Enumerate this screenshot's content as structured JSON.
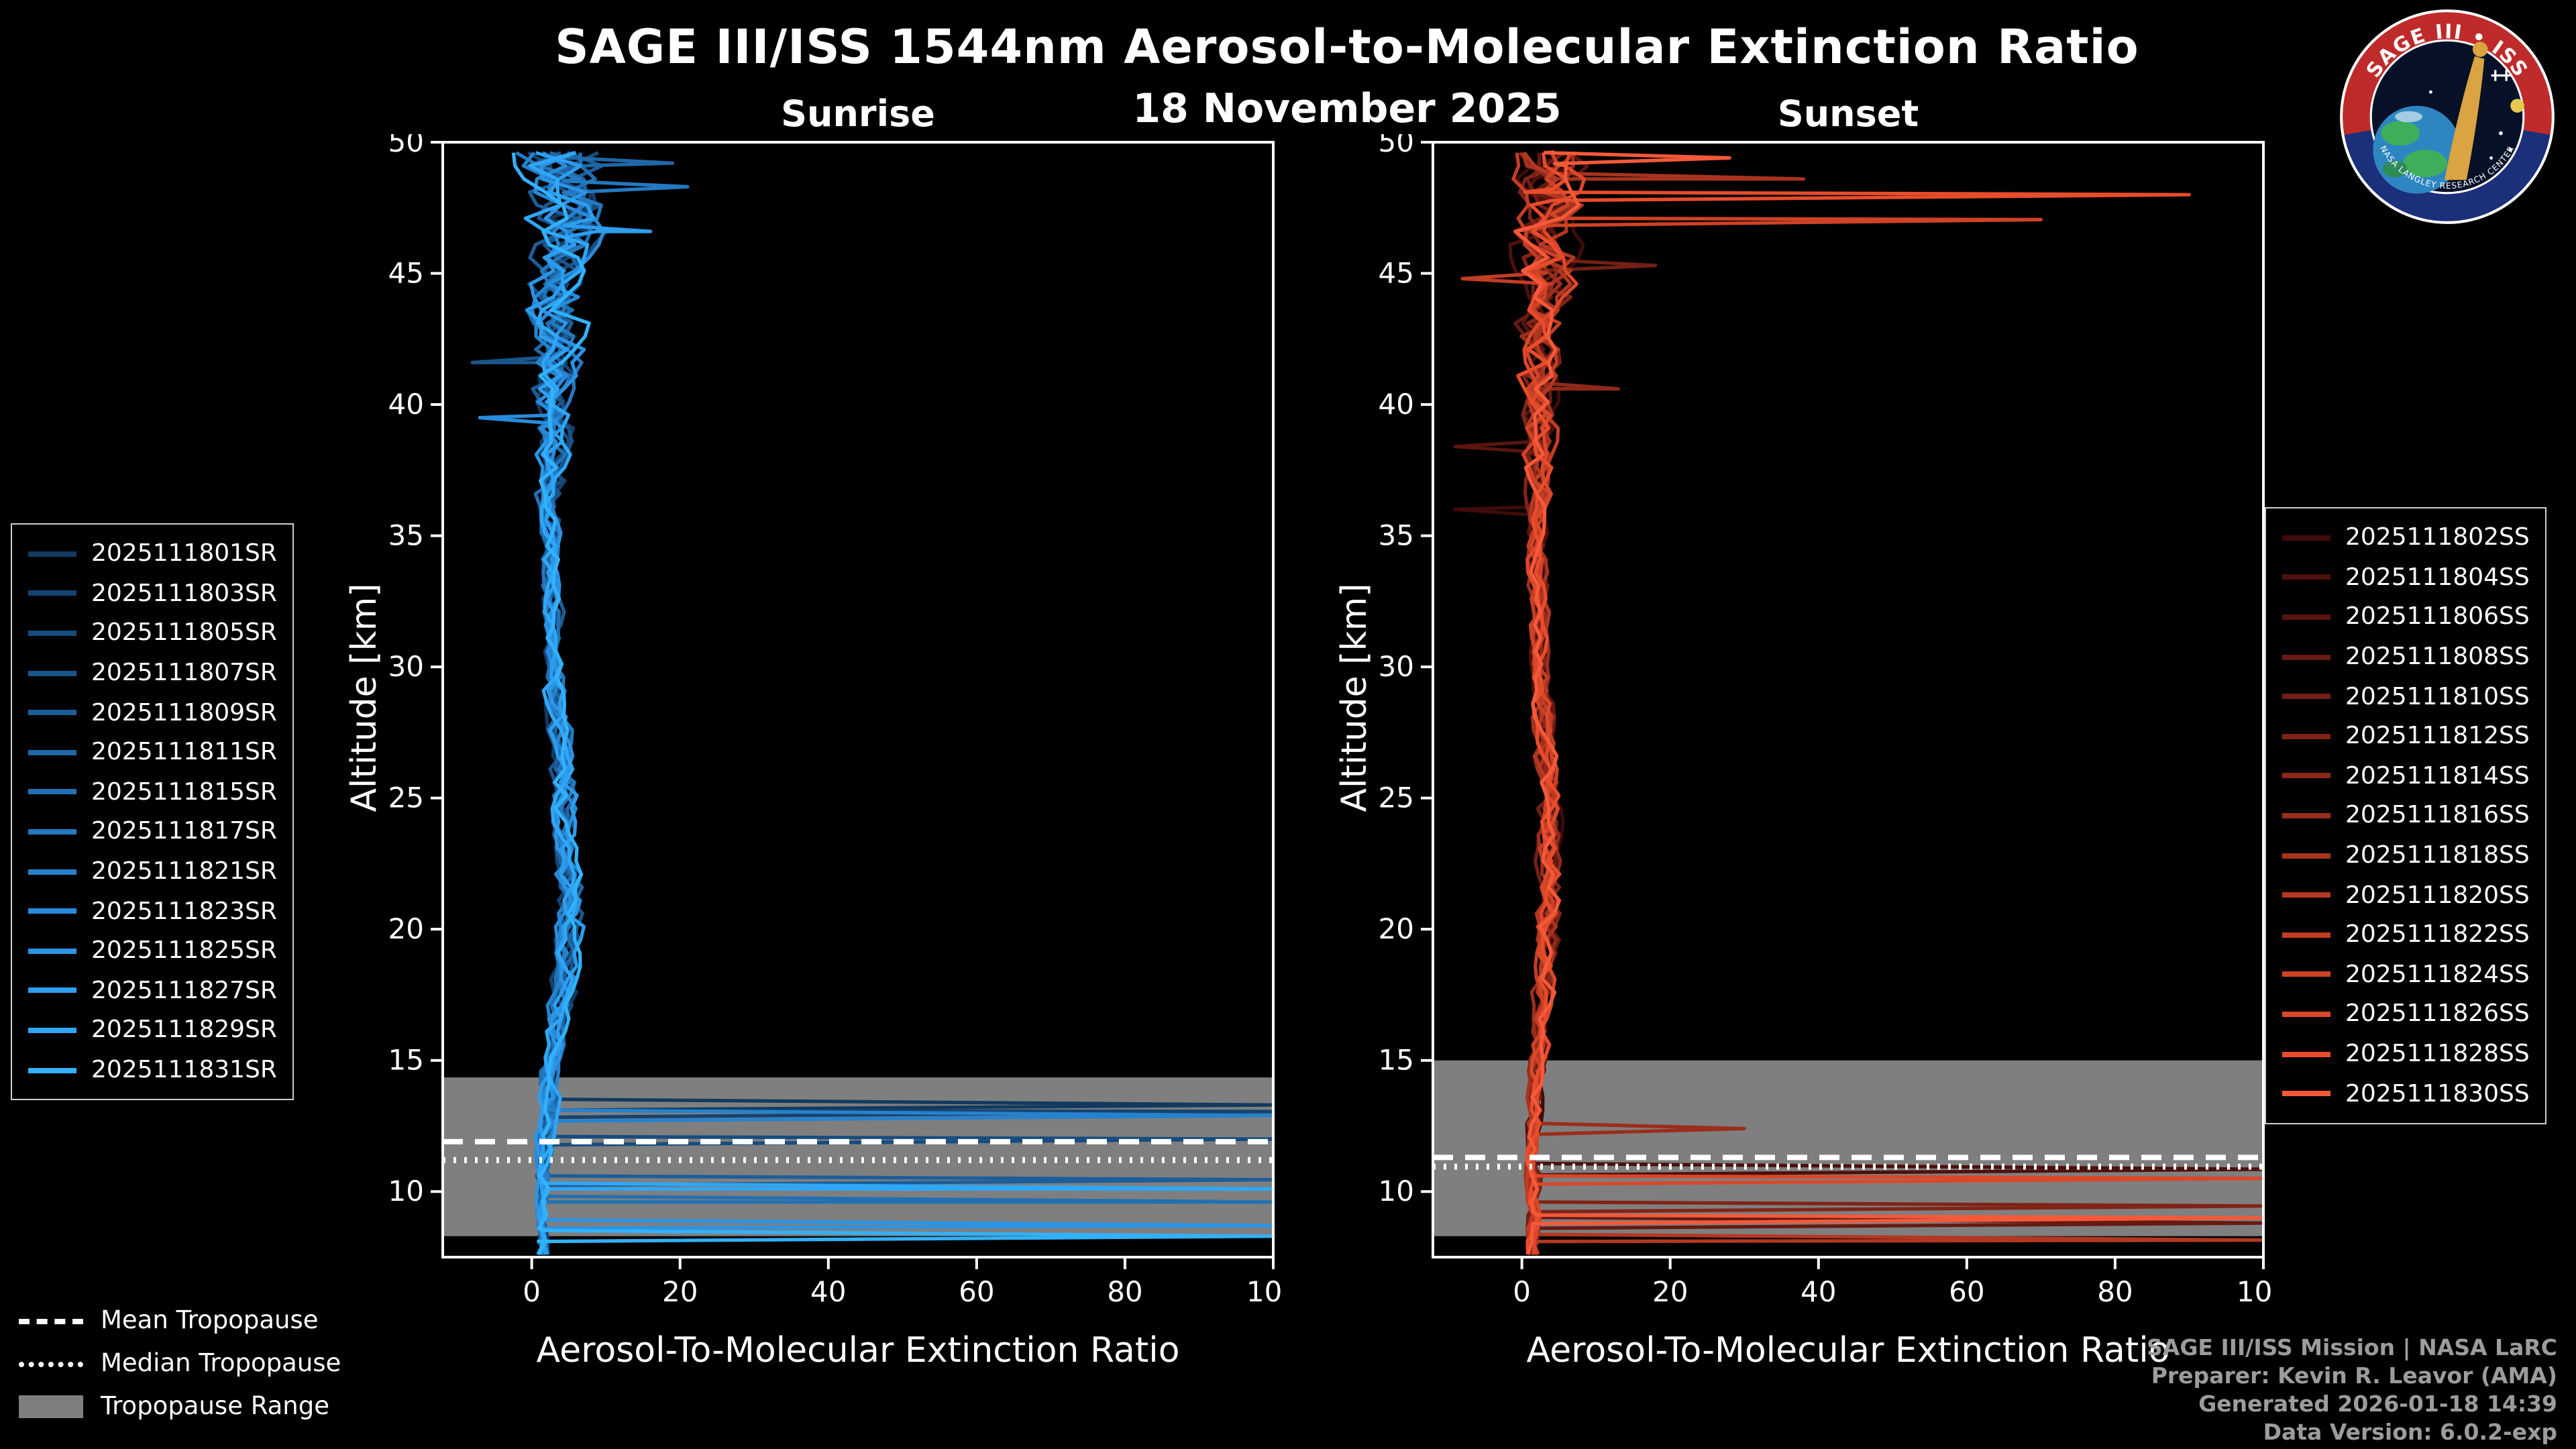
{
  "title": "SAGE III/ISS 1544nm Aerosol-to-Molecular Extinction Ratio",
  "date": "18 November 2025",
  "logo": {
    "title": "SAGE III • ISS",
    "band_text": "NASA LANGLEY RESEARCH CENTER"
  },
  "tropopause_legend": {
    "mean": "Mean Tropopause",
    "median": "Median Tropopause",
    "range": "Tropopause Range"
  },
  "footer": {
    "lines": [
      "SAGE III/ISS Mission | NASA LaRC",
      "Preparer: Kevin R. Leavor (AMA)",
      "Generated 2026-01-18 14:39",
      "Data Version: 6.0.2-exp"
    ]
  },
  "chart_data": [
    {
      "type": "line",
      "title": "Sunrise",
      "xlabel": "Aerosol-To-Molecular Extinction Ratio",
      "ylabel": "Altitude [km]",
      "xlim": [
        -12,
        100
      ],
      "ylim": [
        7.5,
        50
      ],
      "xticks": [
        0,
        20,
        40,
        60,
        80,
        100
      ],
      "yticks": [
        10,
        15,
        20,
        25,
        30,
        35,
        40,
        45,
        50
      ],
      "grid": false,
      "legend_position": "left",
      "tropopause": {
        "range_km": [
          8.3,
          14.35
        ],
        "mean_km": 11.9,
        "median_km": 11.2
      },
      "base_profile": [
        [
          8,
          1.5,
          1.0
        ],
        [
          11,
          1.5,
          1.2
        ],
        [
          14,
          2.5,
          1.5
        ],
        [
          17,
          4.0,
          1.8
        ],
        [
          21,
          5.0,
          2.0
        ],
        [
          25,
          4.5,
          1.8
        ],
        [
          30,
          3.0,
          1.4
        ],
        [
          35,
          2.5,
          1.6
        ],
        [
          40,
          3.0,
          2.8
        ],
        [
          44,
          3.5,
          4.5
        ],
        [
          47,
          4.5,
          6.0
        ],
        [
          50,
          4.0,
          6.5
        ]
      ],
      "series": [
        {
          "label": "2025111801SR",
          "color": "#123a5f",
          "seed": 3,
          "features": [
            {
              "alt": 13.3,
              "value": 100
            }
          ]
        },
        {
          "label": "2025111803SR",
          "color": "#154370",
          "seed": 11,
          "features": [
            {
              "alt": 13.05,
              "value": 100
            }
          ]
        },
        {
          "label": "2025111805SR",
          "color": "#174c7e",
          "seed": 17,
          "features": [
            {
              "alt": 12.0,
              "value": 100
            }
          ]
        },
        {
          "label": "2025111807SR",
          "color": "#1a558c",
          "seed": 23,
          "features": [
            {
              "alt": 41.6,
              "value": -8
            }
          ]
        },
        {
          "label": "2025111809SR",
          "color": "#1c5e99",
          "seed": 29,
          "features": [
            {
              "alt": 10.45,
              "value": 100
            }
          ]
        },
        {
          "label": "2025111811SR",
          "color": "#1f67a6",
          "seed": 31,
          "features": [
            {
              "alt": 49.2,
              "value": 19
            }
          ]
        },
        {
          "label": "2025111815SR",
          "color": "#2170b3",
          "seed": 41,
          "features": [
            {
              "alt": 9.6,
              "value": 100
            }
          ]
        },
        {
          "label": "2025111817SR",
          "color": "#2479c0",
          "seed": 47,
          "features": [
            {
              "alt": 48.3,
              "value": 21
            }
          ]
        },
        {
          "label": "2025111821SR",
          "color": "#2682cd",
          "seed": 53,
          "features": [
            {
              "alt": 12.9,
              "value": 100
            }
          ]
        },
        {
          "label": "2025111823SR",
          "color": "#288bd9",
          "seed": 59,
          "features": [
            {
              "alt": 39.5,
              "value": -7
            }
          ]
        },
        {
          "label": "2025111825SR",
          "color": "#2b94e4",
          "seed": 61,
          "features": [
            {
              "alt": 8.7,
              "value": 100
            }
          ]
        },
        {
          "label": "2025111827SR",
          "color": "#2d9dee",
          "seed": 71,
          "features": [
            {
              "alt": 46.6,
              "value": 16
            }
          ]
        },
        {
          "label": "2025111829SR",
          "color": "#2fa7f6",
          "seed": 73,
          "features": [
            {
              "alt": 10.1,
              "value": 100
            }
          ]
        },
        {
          "label": "2025111831SR",
          "color": "#32b1fd",
          "seed": 79,
          "features": [
            {
              "alt": 8.3,
              "value": 100
            }
          ]
        }
      ]
    },
    {
      "type": "line",
      "title": "Sunset",
      "xlabel": "Aerosol-To-Molecular Extinction Ratio",
      "ylabel": "Altitude [km]",
      "xlim": [
        -12,
        100
      ],
      "ylim": [
        7.5,
        50
      ],
      "xticks": [
        0,
        20,
        40,
        60,
        80,
        100
      ],
      "yticks": [
        10,
        15,
        20,
        25,
        30,
        35,
        40,
        45,
        50
      ],
      "grid": false,
      "legend_position": "right",
      "tropopause": {
        "range_km": [
          8.3,
          15.0
        ],
        "mean_km": 11.3,
        "median_km": 10.95
      },
      "base_profile": [
        [
          8,
          1.5,
          1.0
        ],
        [
          11,
          1.5,
          1.2
        ],
        [
          14,
          2.0,
          1.2
        ],
        [
          18,
          3.0,
          1.5
        ],
        [
          22,
          4.0,
          1.8
        ],
        [
          26,
          3.5,
          1.6
        ],
        [
          30,
          2.5,
          1.3
        ],
        [
          35,
          2.0,
          1.5
        ],
        [
          40,
          2.5,
          2.5
        ],
        [
          44,
          3.0,
          4.0
        ],
        [
          47,
          4.0,
          5.0
        ],
        [
          50,
          4.5,
          5.5
        ]
      ],
      "series": [
        {
          "label": "2025111802SS",
          "color": "#3f0b0b",
          "seed": 83,
          "features": [
            {
              "alt": 36.0,
              "value": -9
            }
          ]
        },
        {
          "label": "2025111804SS",
          "color": "#4c100d",
          "seed": 89,
          "features": [
            {
              "alt": 10.85,
              "value": 100
            }
          ]
        },
        {
          "label": "2025111806SS",
          "color": "#591510",
          "seed": 97,
          "features": [
            {
              "alt": 38.4,
              "value": -9
            }
          ]
        },
        {
          "label": "2025111808SS",
          "color": "#661a12",
          "seed": 101,
          "features": [
            {
              "alt": 8.8,
              "value": 100
            }
          ]
        },
        {
          "label": "2025111810SS",
          "color": "#731f15",
          "seed": 103,
          "features": [
            {
              "alt": 45.3,
              "value": 18
            }
          ]
        },
        {
          "label": "2025111812SS",
          "color": "#802417",
          "seed": 107,
          "features": [
            {
              "alt": 9.45,
              "value": 100
            }
          ]
        },
        {
          "label": "2025111814SS",
          "color": "#8d291a",
          "seed": 109,
          "features": [
            {
              "alt": 40.6,
              "value": 13
            }
          ]
        },
        {
          "label": "2025111816SS",
          "color": "#9a2e1c",
          "seed": 113,
          "features": [
            {
              "alt": 12.4,
              "value": 30
            }
          ]
        },
        {
          "label": "2025111818SS",
          "color": "#a7331f",
          "seed": 127,
          "features": [
            {
              "alt": 48.6,
              "value": 38
            }
          ]
        },
        {
          "label": "2025111820SS",
          "color": "#b43821",
          "seed": 131,
          "features": [
            {
              "alt": 8.15,
              "value": 100
            }
          ]
        },
        {
          "label": "2025111822SS",
          "color": "#c13d24",
          "seed": 137,
          "features": [
            {
              "alt": 44.8,
              "value": -8
            }
          ]
        },
        {
          "label": "2025111824SS",
          "color": "#ce4226",
          "seed": 139,
          "features": [
            {
              "alt": 47.05,
              "value": 70
            }
          ]
        },
        {
          "label": "2025111826SS",
          "color": "#db4729",
          "seed": 149,
          "features": [
            {
              "alt": 10.5,
              "value": 100
            }
          ]
        },
        {
          "label": "2025111828SS",
          "color": "#e84c2b",
          "seed": 151,
          "features": [
            {
              "alt": 48.0,
              "value": 90
            }
          ]
        },
        {
          "label": "2025111830SS",
          "color": "#f4593a",
          "seed": 157,
          "features": [
            {
              "alt": 9.0,
              "value": 100
            },
            {
              "alt": 49.4,
              "value": 28
            }
          ]
        }
      ]
    }
  ]
}
